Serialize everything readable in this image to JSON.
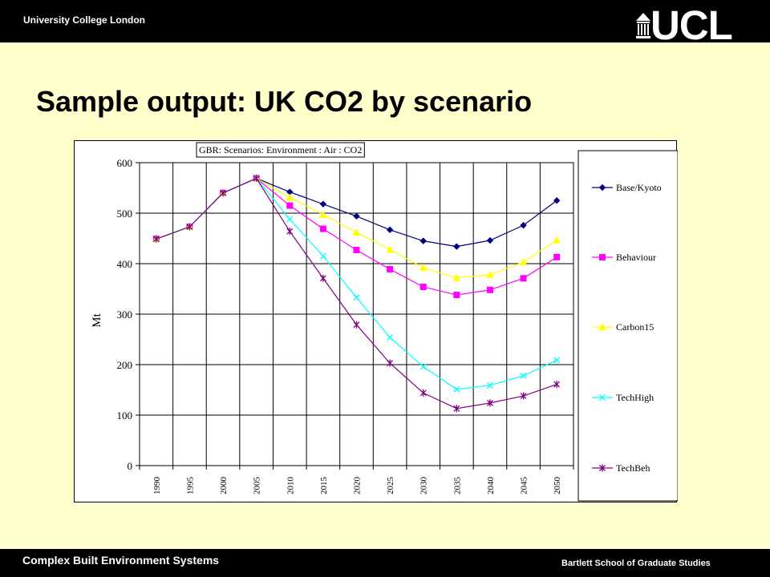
{
  "header": {
    "university": "University College London",
    "logo_text": "UCL"
  },
  "title": "Sample output: UK CO2 by scenario",
  "footer": {
    "left": "Complex Built Environment Systems",
    "right": "Bartlett School of Graduate Studies"
  },
  "colors": {
    "background": "#ffffcc",
    "bars": "#000000"
  },
  "chart_data": {
    "type": "line",
    "title": "GBR: Scenarios: Environment : Air : CO2",
    "ylabel": "Mt",
    "xlabel": "",
    "ylim": [
      0,
      600
    ],
    "yticks": [
      0,
      100,
      200,
      300,
      400,
      500,
      600
    ],
    "grid": true,
    "legend_position": "right",
    "x": [
      "1990",
      "1995",
      "2000",
      "2005",
      "2010",
      "2015",
      "2020",
      "2025",
      "2030",
      "2035",
      "2040",
      "2045",
      "2050"
    ],
    "series": [
      {
        "name": "Base/Kyoto",
        "color": "#000080",
        "marker": "diamond",
        "values": [
          449,
          473,
          540,
          569,
          542,
          518,
          494,
          467,
          445,
          434,
          446,
          476,
          525
        ]
      },
      {
        "name": "Behaviour",
        "color": "#ff00ff",
        "marker": "square",
        "values": [
          449,
          473,
          540,
          569,
          515,
          469,
          427,
          389,
          354,
          338,
          348,
          371,
          413
        ]
      },
      {
        "name": "Carbon15",
        "color": "#ffff00",
        "marker": "triangle",
        "values": [
          449,
          473,
          540,
          569,
          531,
          497,
          462,
          428,
          392,
          372,
          378,
          403,
          447
        ]
      },
      {
        "name": "TechHigh",
        "color": "#00ffff",
        "marker": "x",
        "values": [
          449,
          473,
          540,
          569,
          488,
          415,
          333,
          254,
          196,
          151,
          159,
          178,
          209
        ]
      },
      {
        "name": "TechBeh",
        "color": "#800080",
        "marker": "star",
        "values": [
          449,
          473,
          540,
          569,
          464,
          371,
          279,
          203,
          144,
          113,
          124,
          138,
          161
        ]
      }
    ]
  }
}
